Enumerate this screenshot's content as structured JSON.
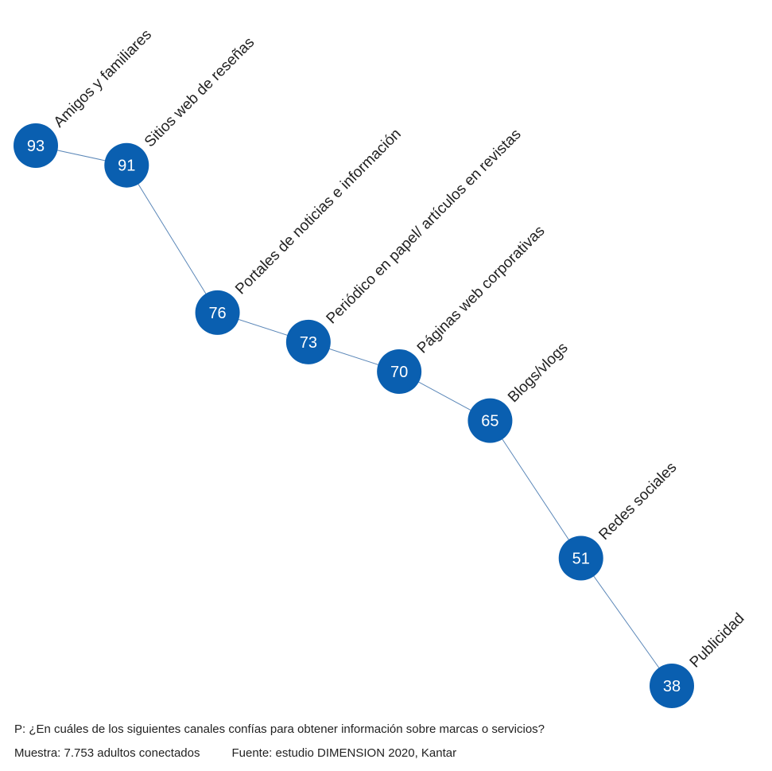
{
  "chart_data": {
    "type": "line",
    "title": "",
    "xlabel": "",
    "ylabel": "",
    "categories": [
      "Amigos y familiares",
      "Sitios web de reseñas",
      "Portales de noticias e información",
      "Periódico en papel/ artículos en revistas",
      "Páginas web corporativas",
      "Blogs/vlogs",
      "Redes sociales",
      "Publicidad"
    ],
    "values": [
      93,
      91,
      76,
      73,
      70,
      65,
      51,
      38
    ],
    "ylim": [
      38,
      93
    ],
    "grid": false,
    "legend": "none"
  },
  "colors": {
    "marker": "#0a5fb0",
    "line": "#5b87b8",
    "value_text": "#ffffff",
    "label_text": "#222222"
  },
  "footer": {
    "question": "P: ¿En cuáles de los siguientes canales confías para obtener información sobre marcas o servicios?",
    "sample": "Muestra: 7.753 adultos conectados",
    "source": "Fuente: estudio DIMENSION 2020, Kantar"
  }
}
